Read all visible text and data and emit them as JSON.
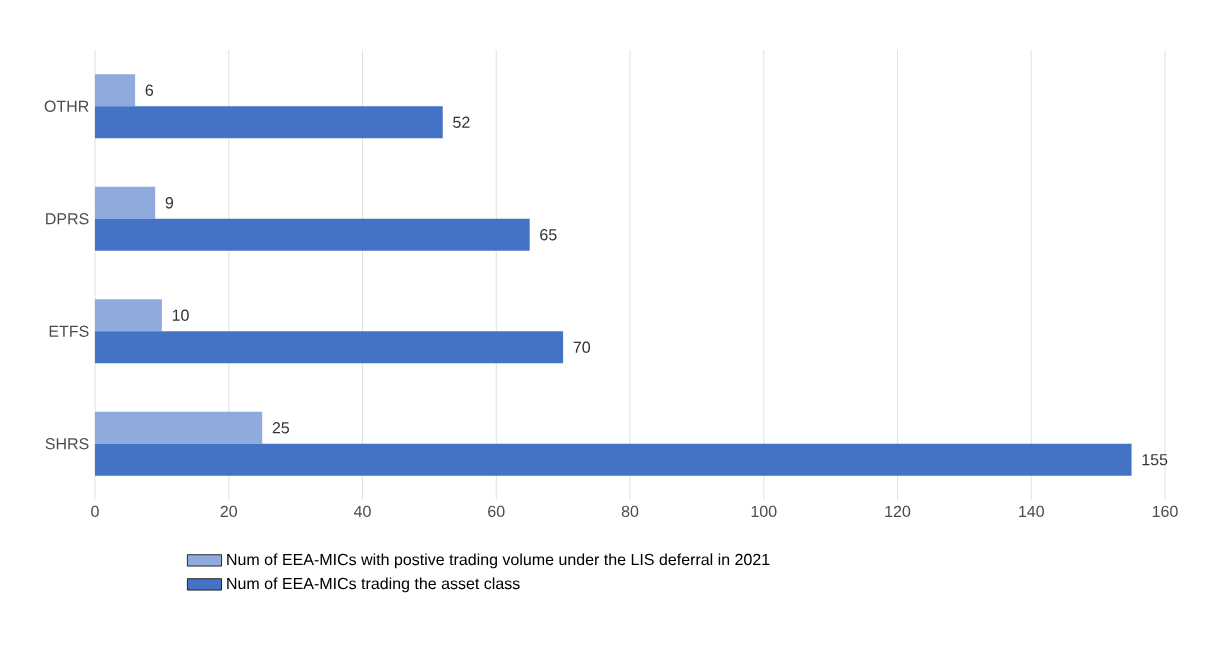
{
  "chart_data": {
    "type": "bar",
    "orientation": "horizontal",
    "categories": [
      "OTHR",
      "DPRS",
      "ETFS",
      "SHRS"
    ],
    "series": [
      {
        "name": "Num of EEA-MICs with postive trading volume under the LIS deferral in 2021",
        "color": "#8faadc",
        "values": [
          6,
          9,
          10,
          25
        ]
      },
      {
        "name": "Num of EEA-MICs trading the asset class",
        "color": "#4472c4",
        "values": [
          52,
          65,
          70,
          155
        ]
      }
    ],
    "xlim": [
      0,
      160
    ],
    "xticks": [
      0,
      20,
      40,
      60,
      80,
      100,
      120,
      140,
      160
    ],
    "grid": "x",
    "legend": "bottom",
    "data_labels": true
  }
}
